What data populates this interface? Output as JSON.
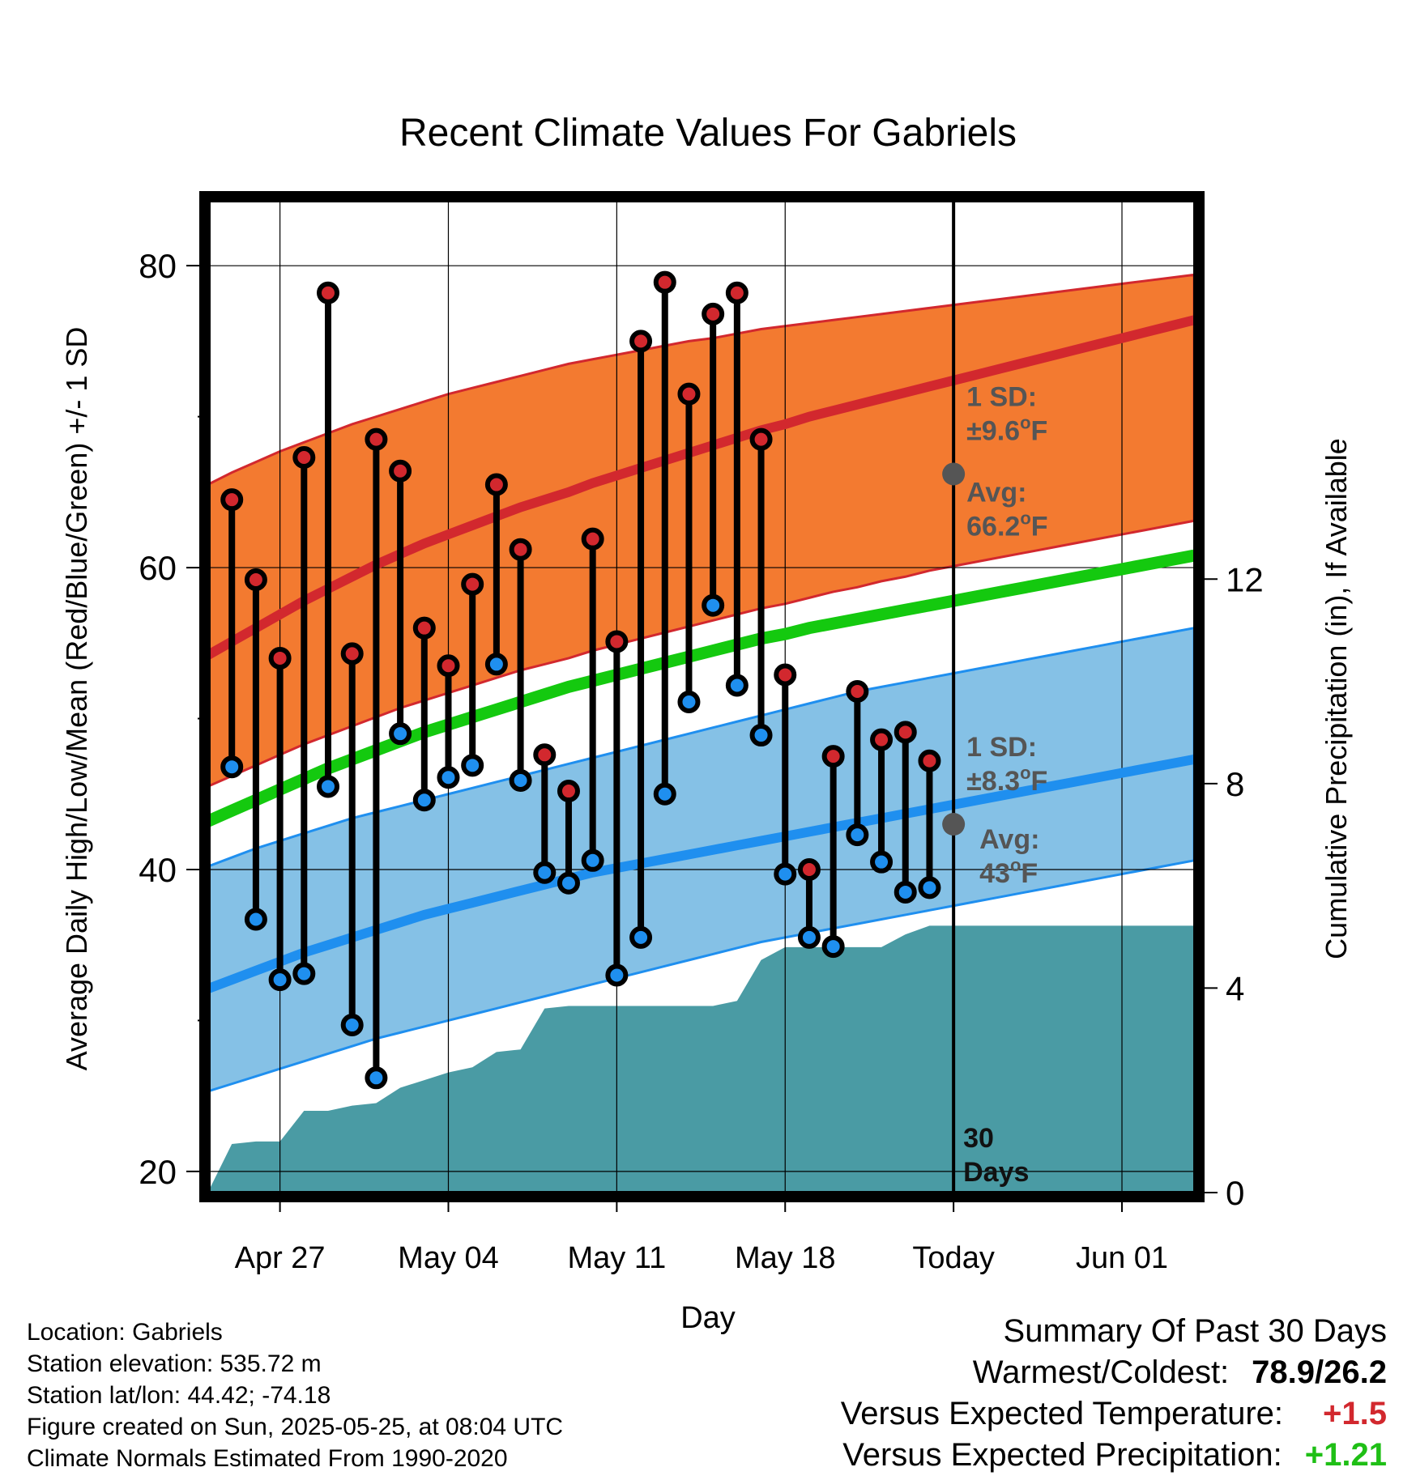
{
  "chart_data": {
    "type": "line",
    "title": "Recent Climate Values For Gabriels",
    "xlabel": "Day",
    "ylabel": "Average Daily High/Low/Mean (Red/Blue/Green) +/- 1 SD",
    "y2label": "Cumulative Precipitation (in), If Available",
    "ylim": [
      18.6,
      84.3
    ],
    "y2lim": [
      0,
      19.4
    ],
    "yticks": [
      20,
      40,
      60,
      80
    ],
    "y2ticks": [
      0,
      4,
      8,
      12
    ],
    "x_dates": [
      "Apr 24",
      "Apr 25",
      "Apr 26",
      "Apr 27",
      "Apr 28",
      "Apr 29",
      "Apr 30",
      "May 01",
      "May 02",
      "May 03",
      "May 04",
      "May 05",
      "May 06",
      "May 07",
      "May 08",
      "May 09",
      "May 10",
      "May 11",
      "May 12",
      "May 13",
      "May 14",
      "May 15",
      "May 16",
      "May 17",
      "May 18",
      "May 19",
      "May 20",
      "May 21",
      "May 22",
      "May 23",
      "May 24",
      "May 25",
      "May 26",
      "May 27",
      "May 28",
      "May 29",
      "May 30",
      "May 31",
      "Jun 01",
      "Jun 02",
      "Jun 03",
      "Jun 04"
    ],
    "xtick_labels": [
      "Apr 27",
      "May 04",
      "May 11",
      "May 18",
      "Today",
      "Jun 01"
    ],
    "xtick_dates": [
      "Apr 27",
      "May 04",
      "May 11",
      "May 18",
      "May 25",
      "Jun 01"
    ],
    "today": "May 25",
    "obs_dates": [
      "Apr 25",
      "Apr 26",
      "Apr 27",
      "Apr 28",
      "Apr 29",
      "Apr 30",
      "May 01",
      "May 02",
      "May 03",
      "May 04",
      "May 05",
      "May 06",
      "May 07",
      "May 08",
      "May 09",
      "May 10",
      "May 11",
      "May 12",
      "May 13",
      "May 14",
      "May 15",
      "May 16",
      "May 17",
      "May 18",
      "May 19",
      "May 20",
      "May 21",
      "May 22",
      "May 23",
      "May 24"
    ],
    "highs": [
      64.5,
      59.2,
      54.0,
      67.3,
      78.2,
      54.3,
      68.5,
      66.4,
      56.0,
      53.5,
      58.9,
      65.5,
      61.2,
      47.6,
      45.2,
      61.9,
      55.1,
      75.0,
      78.9,
      71.5,
      76.8,
      78.2,
      68.5,
      52.9,
      40.0,
      47.5,
      51.8,
      48.6,
      49.1,
      47.2
    ],
    "lows": [
      46.8,
      36.7,
      32.7,
      33.1,
      45.5,
      29.7,
      26.2,
      49.0,
      44.6,
      46.1,
      46.9,
      53.6,
      45.9,
      39.8,
      39.1,
      40.6,
      33.0,
      35.5,
      45.0,
      51.1,
      57.5,
      52.2,
      48.9,
      39.7,
      35.5,
      34.9,
      42.3,
      40.5,
      38.5,
      38.8
    ],
    "series": [
      {
        "name": "Normal High",
        "values": [
          54.2,
          55.1,
          56.0,
          56.9,
          57.8,
          58.6,
          59.4,
          60.2,
          60.9,
          61.6,
          62.2,
          62.8,
          63.4,
          64.0,
          64.5,
          65.0,
          65.6,
          66.1,
          66.6,
          67.1,
          67.6,
          68.1,
          68.6,
          69.1,
          69.5,
          70.0,
          70.4,
          70.8,
          71.2,
          71.6,
          72.0,
          72.4,
          72.8,
          73.2,
          73.6,
          74.0,
          74.4,
          74.8,
          75.2,
          75.6,
          76.0,
          76.4
        ]
      },
      {
        "name": "Normal High +1 SD",
        "values": [
          65.5,
          66.3,
          67.0,
          67.7,
          68.3,
          68.9,
          69.5,
          70.0,
          70.5,
          71.0,
          71.5,
          71.9,
          72.3,
          72.7,
          73.1,
          73.5,
          73.8,
          74.1,
          74.4,
          74.7,
          75.0,
          75.2,
          75.5,
          75.8,
          76.0,
          76.2,
          76.4,
          76.6,
          76.8,
          77.0,
          77.2,
          77.4,
          77.6,
          77.8,
          78.0,
          78.2,
          78.4,
          78.6,
          78.8,
          79.0,
          79.2,
          79.4
        ]
      },
      {
        "name": "Normal High -1 SD",
        "values": [
          45.5,
          46.2,
          46.9,
          47.6,
          48.3,
          48.9,
          49.5,
          50.1,
          50.7,
          51.2,
          51.7,
          52.2,
          52.7,
          53.2,
          53.6,
          54.0,
          54.5,
          54.9,
          55.3,
          55.7,
          56.1,
          56.5,
          56.9,
          57.3,
          57.6,
          58.0,
          58.4,
          58.7,
          59.1,
          59.4,
          59.8,
          60.1,
          60.4,
          60.7,
          61.0,
          61.3,
          61.6,
          61.9,
          62.2,
          62.5,
          62.8,
          63.1
        ]
      },
      {
        "name": "Normal Mean",
        "values": [
          43.2,
          43.9,
          44.6,
          45.3,
          46.0,
          46.7,
          47.3,
          47.9,
          48.5,
          49.1,
          49.6,
          50.1,
          50.6,
          51.1,
          51.6,
          52.1,
          52.5,
          52.9,
          53.3,
          53.7,
          54.1,
          54.5,
          54.9,
          55.3,
          55.6,
          56.0,
          56.3,
          56.6,
          56.9,
          57.2,
          57.5,
          57.8,
          58.1,
          58.4,
          58.7,
          59.0,
          59.3,
          59.6,
          59.9,
          60.2,
          60.5,
          60.8
        ]
      },
      {
        "name": "Normal Low",
        "values": [
          32.1,
          32.7,
          33.3,
          33.9,
          34.5,
          35.0,
          35.5,
          36.0,
          36.5,
          37.0,
          37.4,
          37.8,
          38.2,
          38.6,
          39.0,
          39.4,
          39.8,
          40.1,
          40.4,
          40.7,
          41.0,
          41.3,
          41.6,
          41.9,
          42.2,
          42.5,
          42.8,
          43.1,
          43.4,
          43.7,
          44.0,
          44.3,
          44.6,
          44.9,
          45.2,
          45.5,
          45.8,
          46.1,
          46.4,
          46.7,
          47.0,
          47.3
        ]
      },
      {
        "name": "Normal Low +1 SD",
        "values": [
          40.2,
          40.8,
          41.4,
          41.9,
          42.4,
          42.9,
          43.4,
          43.8,
          44.2,
          44.6,
          45.0,
          45.4,
          45.8,
          46.2,
          46.6,
          47.0,
          47.4,
          47.8,
          48.2,
          48.6,
          49.0,
          49.4,
          49.8,
          50.2,
          50.6,
          51.0,
          51.4,
          51.8,
          52.1,
          52.4,
          52.7,
          53.0,
          53.3,
          53.6,
          53.9,
          54.2,
          54.5,
          54.8,
          55.1,
          55.4,
          55.7,
          56.0
        ]
      },
      {
        "name": "Normal Low -1 SD",
        "values": [
          25.3,
          25.8,
          26.3,
          26.8,
          27.3,
          27.8,
          28.3,
          28.8,
          29.2,
          29.6,
          30.0,
          30.4,
          30.8,
          31.2,
          31.6,
          32.0,
          32.4,
          32.8,
          33.2,
          33.6,
          34.0,
          34.4,
          34.8,
          35.2,
          35.5,
          35.8,
          36.1,
          36.4,
          36.7,
          37.0,
          37.3,
          37.6,
          37.9,
          38.2,
          38.5,
          38.8,
          39.1,
          39.4,
          39.7,
          40.0,
          40.3,
          40.6
        ]
      }
    ],
    "precip_cum": [
      0.0,
      0.95,
      1.0,
      1.0,
      1.6,
      1.6,
      1.7,
      1.75,
      2.05,
      2.2,
      2.35,
      2.45,
      2.75,
      2.8,
      3.6,
      3.65,
      3.65,
      3.65,
      3.65,
      3.65,
      3.65,
      3.65,
      3.75,
      4.55,
      4.8,
      4.8,
      4.8,
      4.8,
      4.8,
      5.05,
      5.22,
      5.22,
      5.22,
      5.22,
      5.22,
      5.22,
      5.22,
      5.22,
      5.22,
      5.22,
      5.22
    ],
    "precip_dates_start": "Apr 24",
    "annotations": {
      "high_sd": "1 SD:",
      "high_sd_value": "±9.6",
      "high_avg_label": "Avg:",
      "high_avg_value": "66.2",
      "high_avg": 66.2,
      "low_sd": "1 SD:",
      "low_sd_value": "±8.3",
      "low_avg_label": "Avg:",
      "low_avg_value": "43",
      "low_avg": 43.0,
      "unit_deg": "o",
      "unit_f": "F",
      "days_num": "30",
      "days_word": "Days"
    },
    "colors": {
      "high_band": "#f37a30",
      "high_line": "#d2282e",
      "low_band": "#85c1e6",
      "low_line": "#1f8fef",
      "mean_line": "#14c90f",
      "precip": "#4a9ba4",
      "annot": "#555555",
      "high_dot": "#d2282e",
      "low_dot": "#1f8fef"
    },
    "grid": true
  },
  "info": {
    "location": "Location: Gabriels",
    "elevation": "Station elevation: 535.72 m",
    "latlon": "Station lat/lon: 44.42; -74.18",
    "created": "Figure created on Sun, 2025-05-25, at 08:04 UTC",
    "normals": "Climate Normals Estimated From 1990-2020"
  },
  "summary": {
    "title": "Summary Of Past 30 Days",
    "warm_cold_label": "Warmest/Coldest:",
    "warm_cold_value": "78.9/26.2",
    "temp_label": "Versus Expected Temperature:",
    "temp_value": "+1.5",
    "precip_label": "Versus Expected Precipitation:",
    "precip_value": "+1.21"
  }
}
